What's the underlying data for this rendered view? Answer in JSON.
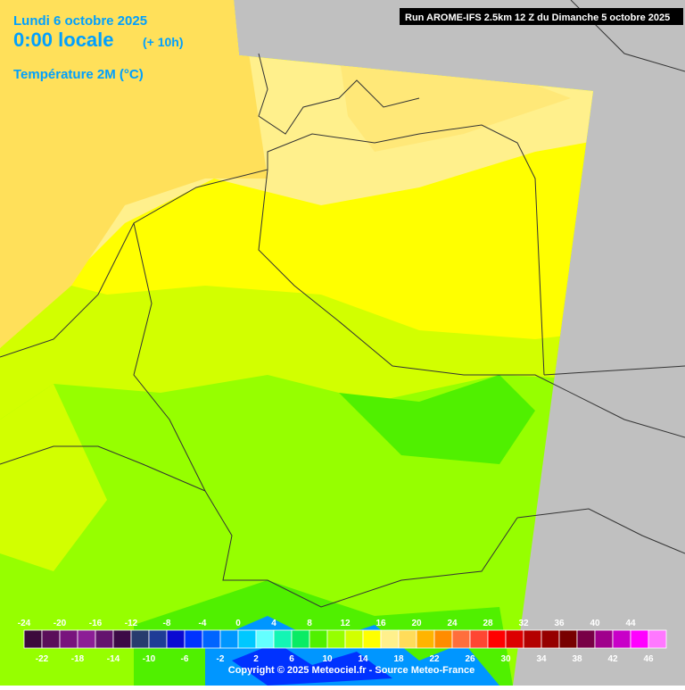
{
  "header": {
    "date": "Lundi 6 octobre 2025",
    "time": "0:00 locale",
    "offset": "(+ 10h)",
    "parameter": "Température 2M (°C)",
    "run": "Run AROME-IFS 2.5km 12 Z du Dimanche 5 octobre 2025"
  },
  "legend": {
    "values": [
      -24,
      -22,
      -20,
      -18,
      -16,
      -14,
      -12,
      -10,
      -8,
      -6,
      -4,
      -2,
      0,
      2,
      4,
      6,
      8,
      10,
      12,
      14,
      16,
      18,
      20,
      22,
      24,
      26,
      28,
      30,
      32,
      34,
      36,
      38,
      40,
      42,
      44,
      46
    ],
    "colors": [
      "#3c0a3c",
      "#5a0f5a",
      "#78147d",
      "#8c1e96",
      "#64146e",
      "#3c0a46",
      "#283c6e",
      "#1e3c96",
      "#0a0ad2",
      "#0032ff",
      "#0064ff",
      "#0096ff",
      "#00c8ff",
      "#64ffff",
      "#14f5b4",
      "#0aeb64",
      "#50f000",
      "#96ff00",
      "#d2ff00",
      "#ffff00",
      "#fff08c",
      "#ffdc5a",
      "#ffb400",
      "#ff8c00",
      "#ff6e3c",
      "#ff4632",
      "#ff0000",
      "#dc0000",
      "#b40000",
      "#960000",
      "#780000",
      "#780046",
      "#a0008c",
      "#c800c8",
      "#ff00ff",
      "#ff78ff"
    ]
  },
  "footer": {
    "copyright": "Copyright © 2025 Meteociel.fr - Source Meteo-France"
  }
}
